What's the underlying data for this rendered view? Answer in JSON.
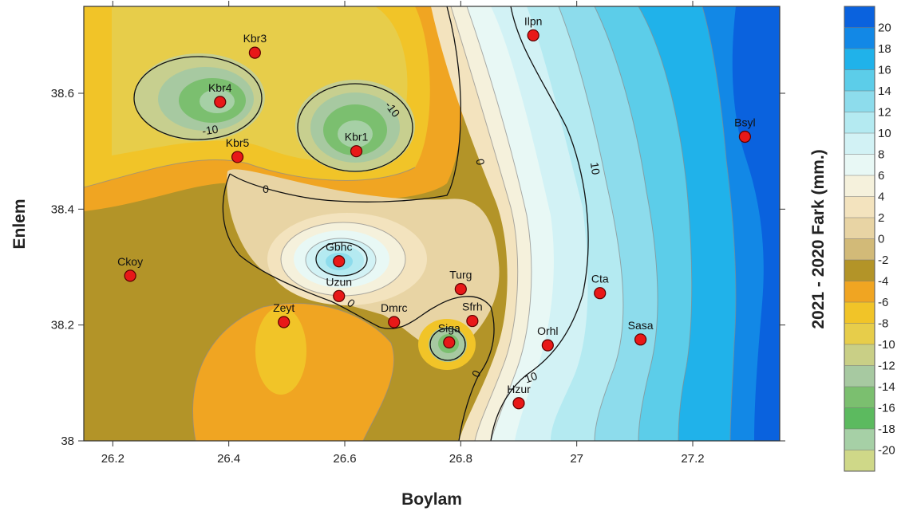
{
  "chart_data": {
    "type": "contour",
    "xlabel": "Boylam",
    "ylabel": "Enlem",
    "colorbar_label": "2021 - 2020 Fark (mm.)",
    "xlim": [
      26.15,
      27.35
    ],
    "ylim": [
      38.0,
      38.75
    ],
    "x_ticks": [
      "26.2",
      "26.4",
      "26.6",
      "26.8",
      "27",
      "27.2"
    ],
    "x_tick_values": [
      26.2,
      26.4,
      26.6,
      26.8,
      27.0,
      27.2
    ],
    "y_ticks": [
      "38",
      "38.2",
      "38.4",
      "38.6"
    ],
    "y_tick_values": [
      38.0,
      38.2,
      38.4,
      38.6
    ],
    "colorbar_levels": [
      "20",
      "18",
      "16",
      "14",
      "12",
      "10",
      "8",
      "6",
      "4",
      "2",
      "0",
      "-2",
      "-4",
      "-6",
      "-8",
      "-10",
      "-12",
      "-14",
      "-16",
      "-18",
      "-20"
    ],
    "colorbar_colors": [
      "#0a62de",
      "#1288e6",
      "#20b2ea",
      "#5ccde9",
      "#8ddcec",
      "#b4eaf1",
      "#d2f2f5",
      "#e8f8f5",
      "#f5f1dc",
      "#f3e3be",
      "#e8d4a4",
      "#d2ba78",
      "#b39428",
      "#f0a522",
      "#f1c428",
      "#e7cd4a",
      "#c9cf86",
      "#a7c9a1",
      "#7bbf6f",
      "#5cba5f",
      "#a6d0a6",
      "#cfd888"
    ],
    "contour_labels": [
      "-10",
      "-10",
      "0",
      "0",
      "0",
      "0",
      "10",
      "10"
    ],
    "stations": [
      {
        "name": "Ilpn",
        "x": 26.925,
        "y": 38.7
      },
      {
        "name": "Kbr3",
        "x": 26.445,
        "y": 38.67
      },
      {
        "name": "Kbr4",
        "x": 26.385,
        "y": 38.585
      },
      {
        "name": "Kbr1",
        "x": 26.62,
        "y": 38.5
      },
      {
        "name": "Kbr5",
        "x": 26.415,
        "y": 38.49
      },
      {
        "name": "Bsyl",
        "x": 27.29,
        "y": 38.525
      },
      {
        "name": "Ckoy",
        "x": 26.23,
        "y": 38.285
      },
      {
        "name": "Gbhc",
        "x": 26.59,
        "y": 38.31
      },
      {
        "name": "Uzun",
        "x": 26.59,
        "y": 38.25
      },
      {
        "name": "Turg",
        "x": 26.8,
        "y": 38.262
      },
      {
        "name": "Cta",
        "x": 27.04,
        "y": 38.255
      },
      {
        "name": "Zeyt",
        "x": 26.495,
        "y": 38.205
      },
      {
        "name": "Dmrc",
        "x": 26.685,
        "y": 38.205
      },
      {
        "name": "Sfrh",
        "x": 26.82,
        "y": 38.207
      },
      {
        "name": "Siga",
        "x": 26.78,
        "y": 38.17
      },
      {
        "name": "Orhl",
        "x": 26.95,
        "y": 38.165
      },
      {
        "name": "Sasa",
        "x": 27.11,
        "y": 38.175
      },
      {
        "name": "Hzur",
        "x": 26.9,
        "y": 38.065
      }
    ]
  },
  "colors": {
    "station_fill": "#e81818",
    "station_stroke": "#5a0000",
    "contour_line": "#111111"
  }
}
